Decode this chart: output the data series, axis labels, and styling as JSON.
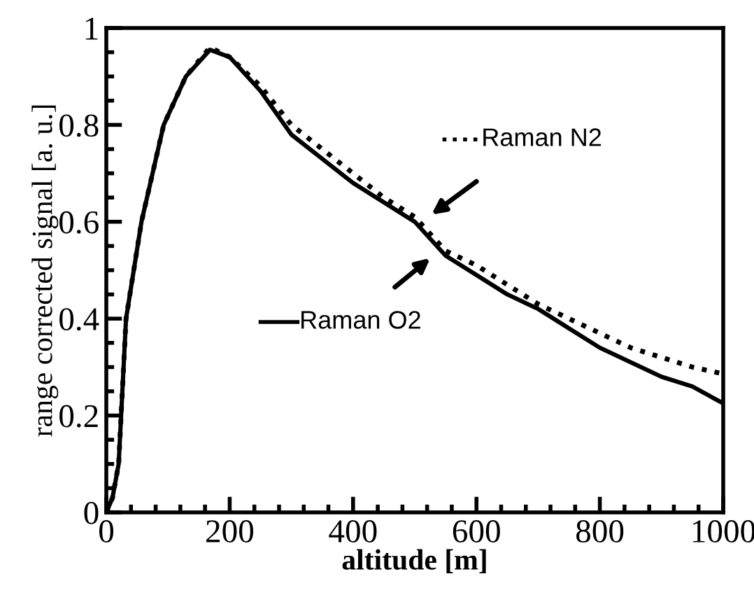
{
  "chart_data": {
    "type": "line",
    "xlabel": "altitude [m]",
    "ylabel": "range corrected signal [a. u.]",
    "xlim": [
      0,
      1000
    ],
    "ylim": [
      0,
      1
    ],
    "xticks": [
      0,
      200,
      400,
      600,
      800,
      1000
    ],
    "yticks": [
      0,
      0.2,
      0.4,
      0.6,
      0.8,
      1
    ],
    "grid": false,
    "legend": "right",
    "series": [
      {
        "name": "Raman N2",
        "color": "#000000",
        "line_style": "dotted",
        "x": [
          0,
          10,
          20,
          32,
          57,
          93,
          129,
          168,
          200,
          250,
          300,
          350,
          400,
          450,
          500,
          550,
          600,
          650,
          700,
          750,
          800,
          850,
          900,
          950,
          1000
        ],
        "values": [
          0,
          0.03,
          0.1,
          0.4,
          0.6,
          0.8,
          0.9,
          0.96,
          0.94,
          0.88,
          0.8,
          0.75,
          0.7,
          0.65,
          0.61,
          0.54,
          0.51,
          0.47,
          0.43,
          0.4,
          0.37,
          0.34,
          0.32,
          0.3,
          0.286
        ]
      },
      {
        "name": "Raman O2",
        "color": "#000000",
        "line_style": "solid",
        "x": [
          0,
          10,
          20,
          32,
          57,
          93,
          129,
          168,
          200,
          250,
          300,
          350,
          400,
          450,
          500,
          550,
          600,
          650,
          700,
          750,
          800,
          850,
          900,
          950,
          1000
        ],
        "values": [
          0,
          0.03,
          0.1,
          0.4,
          0.6,
          0.8,
          0.9,
          0.955,
          0.94,
          0.87,
          0.78,
          0.73,
          0.68,
          0.64,
          0.6,
          0.53,
          0.49,
          0.45,
          0.42,
          0.38,
          0.34,
          0.31,
          0.28,
          0.26,
          0.225
        ]
      }
    ]
  }
}
